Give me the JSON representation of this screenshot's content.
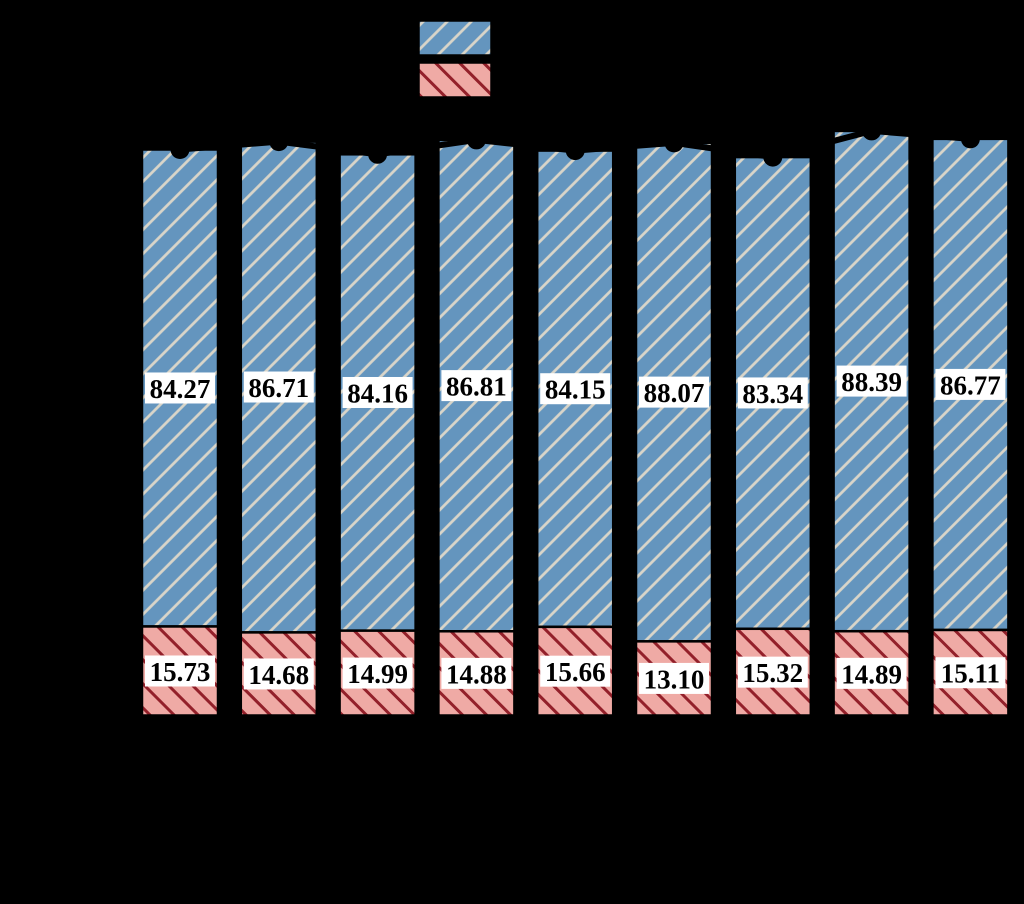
{
  "canvas": {
    "background": "#000000"
  },
  "legend": {
    "swatches": [
      {
        "name": "top-series-swatch",
        "fill": "#6495BE",
        "hatch": "/",
        "hatch_color": "#D9D5C9"
      },
      {
        "name": "bottom-series-swatch",
        "fill": "#EFAAA5",
        "hatch": "\\",
        "hatch_color": "#93202A"
      }
    ]
  },
  "chart_data": {
    "type": "bar",
    "stacked": true,
    "orientation": "vertical",
    "n_bars": 9,
    "axes_visible": false,
    "legend_position": "top-center",
    "series": [
      {
        "name": "top-segment-blue",
        "color": "#6495BE",
        "hatch": "/",
        "hatch_color": "#D9D5C9",
        "values": [
          84.27,
          86.71,
          84.16,
          86.81,
          84.15,
          88.07,
          83.34,
          88.39,
          86.77
        ],
        "labels": [
          "84.27",
          "86.71",
          "84.16",
          "86.81",
          "84.15",
          "88.07",
          "83.34",
          "88.39",
          "86.77"
        ]
      },
      {
        "name": "bottom-segment-red",
        "color": "#EFAAA5",
        "hatch": "\\",
        "hatch_color": "#93202A",
        "values": [
          15.73,
          14.68,
          14.99,
          14.88,
          15.66,
          13.1,
          15.32,
          14.89,
          15.11
        ],
        "labels": [
          "15.73",
          "14.68",
          "14.99",
          "14.88",
          "15.66",
          "13.10",
          "15.32",
          "14.89",
          "15.11"
        ]
      }
    ],
    "totals": [
      100.0,
      101.39,
      99.15,
      101.69,
      99.81,
      101.17,
      98.66,
      103.28,
      101.88
    ],
    "marker_line": {
      "color": "#000000",
      "marker": "circle"
    },
    "value_label_style": {
      "background": "#FFFFFF",
      "text_color": "#000000"
    }
  }
}
